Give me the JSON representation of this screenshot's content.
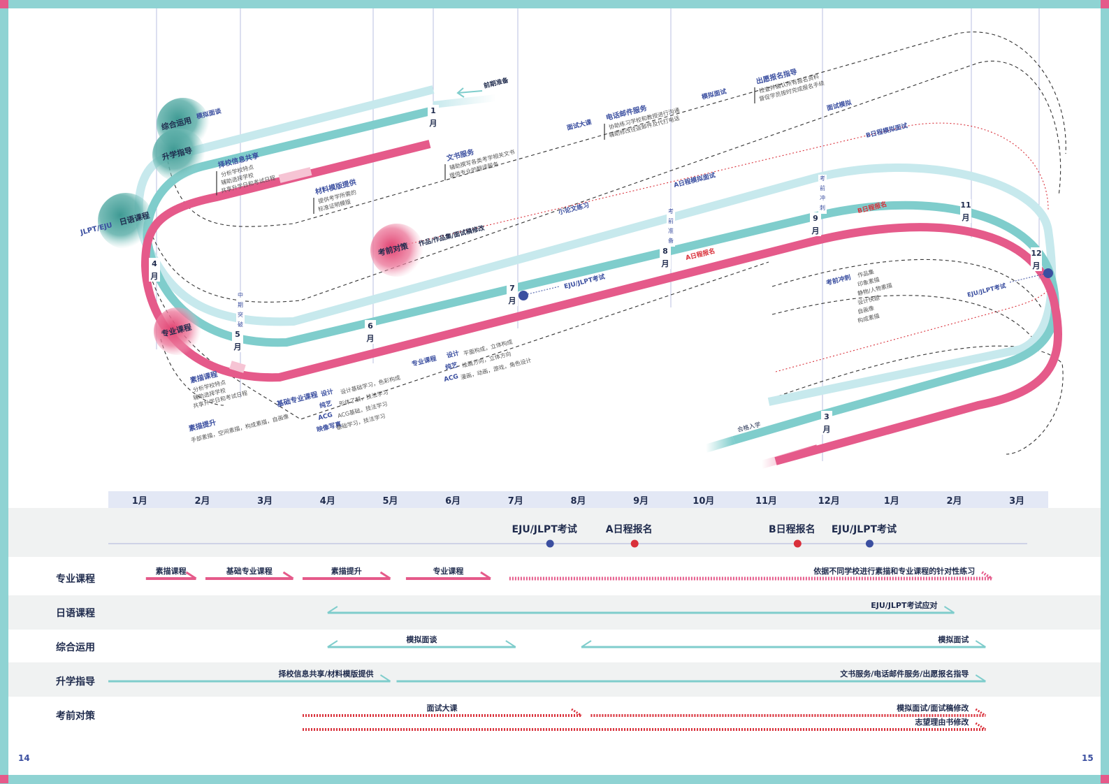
{
  "page_numbers": {
    "left": "14",
    "right": "15"
  },
  "colors": {
    "pink": "#e55a8a",
    "teal": "#7fcdcc",
    "light_teal": "#c7e9ed",
    "navy": "#3b4fa0",
    "red": "#d9303a",
    "header_bg": "#e3e8f5",
    "band_bg": "#f0f2f2"
  },
  "circles": {
    "zonghe": "综合运用",
    "shengxue": "升学指导",
    "riyu": "日语课程",
    "kaoqian": "考前对策",
    "zhuanye": "专业课程",
    "jlpt_eju": "JLPT/EJU"
  },
  "track_months": {
    "jan": [
      "1",
      "月"
    ],
    "apr": [
      "4",
      "月"
    ],
    "may": [
      "5",
      "月"
    ],
    "jun": [
      "6",
      "月"
    ],
    "jul": [
      "7",
      "月"
    ],
    "aug": [
      "8",
      "月"
    ],
    "sep": [
      "9",
      "月"
    ],
    "nov": [
      "11",
      "月"
    ],
    "dec": [
      "12",
      "月"
    ],
    "mar": [
      "3",
      "月"
    ]
  },
  "vertical_labels": {
    "zhongqi": "中期突破",
    "kaoqian_zhunbei": "考前准备",
    "kaoqian_chongci": "考前冲刺"
  },
  "diagram_labels": {
    "qianqi": "前期准备",
    "moni_miantan": "模拟面谈",
    "zexiao_title": "择校信息共享",
    "zexiao_items": [
      "分析学校特点",
      "辅助选择学校",
      "共享升学日和考试日程"
    ],
    "cailiao_title": "材料模版提供",
    "cailiao_items": [
      "提供考学所需的",
      "标准证明模版"
    ],
    "wenshu_title": "文书服务",
    "wenshu_items": [
      "辅助撰写各类考学相关文书",
      "提供专业的翻译服务"
    ],
    "mianshi_dake": "面试大课",
    "dianhua_title": "电话邮件服务",
    "dianhua_items": [
      "协助练习学校和教授进行沟通",
      "辅助修改往返邮件及代打电话"
    ],
    "moni_mianshi": "模拟面试",
    "chuyuan_title": "出愿报名指导",
    "chuyuan_items": [
      "检查并确认所有报名资料",
      "督促学员按时完成报名手续"
    ],
    "mianshi_moni": "面试模拟",
    "b_moni": "B日程模拟面试",
    "a_moni": "A日程模拟面试",
    "xiaolunwen": "小论文练习",
    "zuopinji": "作品/作品集/面试稿修改",
    "b_baoming": "B日程报名",
    "a_baoming": "A日程报名",
    "eju1": "EJU/JLPT考试",
    "eju2": "EJU/JLPT考试",
    "kqcc_title": "考前冲刺",
    "kqcc_items": [
      "作品集",
      "印象素描",
      "静物/人物素描",
      "设计快题",
      "自画像",
      "构成素描"
    ],
    "hege": "合格入学",
    "sumiao_title": "素描课程",
    "sumiao_items": [
      "分析学校特点",
      "辅助选择学校",
      "共享升学日和考试日程"
    ],
    "sumiao_tisheng": "素描提升",
    "sumiao_tisheng_items": "手部素描，空间素描，构成素描，自画像",
    "jichu_title": "基础专业课程",
    "jichu_rows": [
      {
        "k": "设计",
        "v": "设计基础学习，色彩构成"
      },
      {
        "k": "纯艺",
        "v": "形体了解，技法学习"
      },
      {
        "k": "ACG",
        "v": "ACG基础，技法学习"
      },
      {
        "k": "映像写真",
        "v": "基础学习，技法学习"
      }
    ],
    "zhuanye2_title": "专业课程",
    "zhuanye2_rows": [
      {
        "k": "设计",
        "v": "平面构成，立体构成"
      },
      {
        "k": "纯艺",
        "v": "绘画方向，立体方向"
      },
      {
        "k": "ACG",
        "v": "漫画，动画，游戏，角色设计"
      }
    ]
  },
  "gantt": {
    "months": [
      "1月",
      "2月",
      "3月",
      "4月",
      "5月",
      "6月",
      "7月",
      "8月",
      "9月",
      "10月",
      "11月",
      "12月",
      "1月",
      "2月",
      "3月"
    ],
    "milestones": [
      {
        "label": "EJU/JLPT考试",
        "month": 7.05,
        "kind": "exam"
      },
      {
        "label": "A日程报名",
        "month": 8.4,
        "kind": "apply"
      },
      {
        "label": "B日程报名",
        "month": 11.0,
        "kind": "apply"
      },
      {
        "label": "EJU/JLPT考试",
        "month": 12.15,
        "kind": "exam"
      }
    ],
    "rows": [
      {
        "label": "专业课程",
        "bars": [
          {
            "label": "素描课程",
            "start": 0.6,
            "end": 1.4,
            "style": "pink-solid",
            "ends": "right"
          },
          {
            "label": "基础专业课程",
            "start": 1.55,
            "end": 2.95,
            "style": "pink-solid",
            "ends": "right"
          },
          {
            "label": "素描提升",
            "start": 3.1,
            "end": 4.5,
            "style": "pink-solid",
            "ends": "right"
          },
          {
            "label": "专业课程",
            "start": 4.75,
            "end": 6.1,
            "style": "pink-solid",
            "ends": "right"
          },
          {
            "label": "依据不同学校进行素描和专业课程的针对性练习",
            "start": 6.4,
            "end": 14.1,
            "style": "pink-dotted",
            "ends": "right"
          }
        ]
      },
      {
        "label": "日语课程",
        "bars": [
          {
            "label": "EJU/JLPT考试应对",
            "start": 3.5,
            "end": 13.5,
            "style": "teal-solid",
            "ends": "both"
          }
        ]
      },
      {
        "label": "综合运用",
        "bars": [
          {
            "label": "模拟面谈",
            "start": 3.5,
            "end": 6.5,
            "style": "teal-solid",
            "ends": "both"
          },
          {
            "label": "模拟面试",
            "start": 7.55,
            "end": 14.0,
            "style": "teal-solid",
            "ends": "both"
          }
        ]
      },
      {
        "label": "升学指导",
        "bars": [
          {
            "label": "择校信息共享/材料模版提供",
            "start": 0.0,
            "end": 4.5,
            "style": "teal-solid",
            "ends": "right"
          },
          {
            "label": "文书服务/电话邮件服务/出愿报名指导",
            "start": 4.6,
            "end": 14.0,
            "style": "teal-solid",
            "ends": "right"
          }
        ]
      },
      {
        "label": "考前对策",
        "bars": [
          {
            "label": "面试大课",
            "start": 3.1,
            "end": 7.55,
            "style": "red-dotted",
            "ends": "right"
          },
          {
            "label": "模拟面试/面试稿修改",
            "start": 7.7,
            "end": 14.0,
            "style": "red-dotted",
            "ends": "right"
          },
          {
            "label": "志望理由书修改",
            "start": 3.1,
            "end": 14.0,
            "style": "red-dotted",
            "ends": "right",
            "sub": true
          }
        ]
      }
    ]
  }
}
